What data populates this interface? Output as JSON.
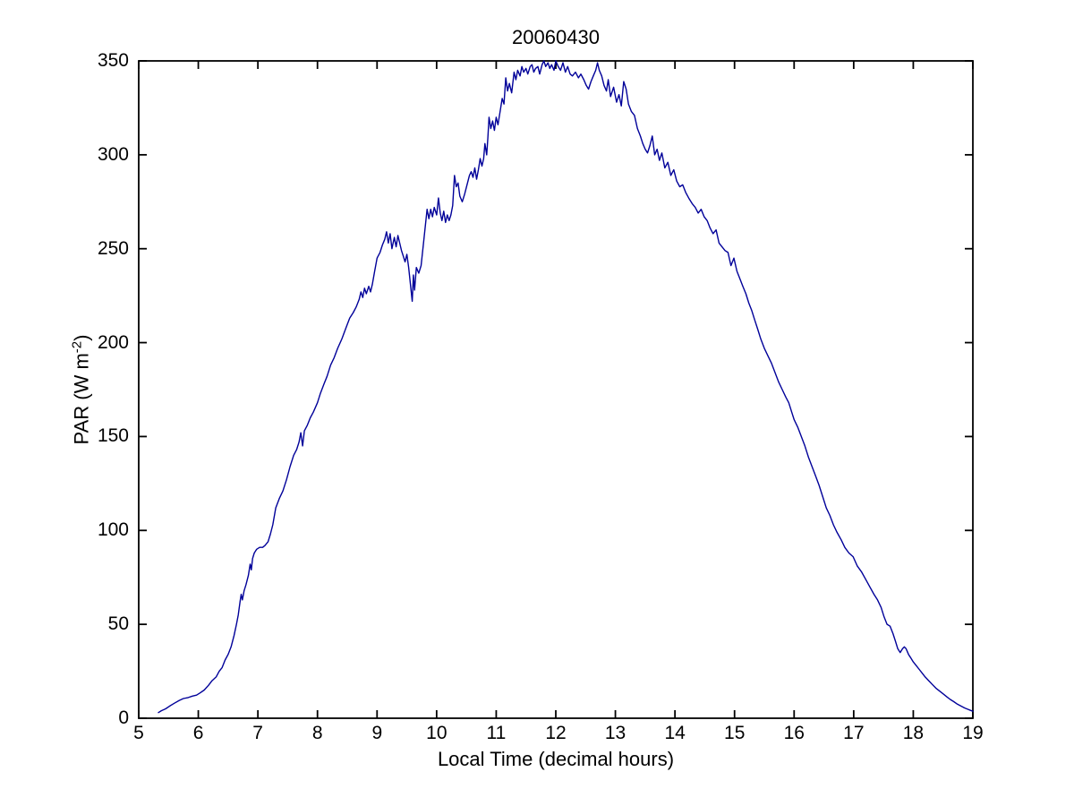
{
  "figure": {
    "background": "#ffffff",
    "text_color": "#000000"
  },
  "chart_data": {
    "type": "line",
    "title": "20060430",
    "xlabel": "Local Time (decimal hours)",
    "ylabel": "PAR (W m-2)",
    "ylabel_main": "PAR (W m",
    "ylabel_sup": "-2",
    "ylabel_end": ")",
    "xlim": [
      5,
      19
    ],
    "ylim": [
      0,
      350
    ],
    "xticks": [
      5,
      6,
      7,
      8,
      9,
      10,
      11,
      12,
      13,
      14,
      15,
      16,
      17,
      18,
      19
    ],
    "yticks": [
      0,
      50,
      100,
      150,
      200,
      250,
      300,
      350
    ],
    "grid": false,
    "legend": null,
    "box": true,
    "tick_direction": "in",
    "line_color": "#000099",
    "axis_color": "#000000",
    "series": [
      {
        "name": "PAR",
        "x": [
          5.33,
          5.38,
          5.45,
          5.52,
          5.6,
          5.68,
          5.75,
          5.83,
          5.9,
          5.97,
          6.03,
          6.1,
          6.17,
          6.23,
          6.3,
          6.35,
          6.4,
          6.45,
          6.5,
          6.55,
          6.6,
          6.64,
          6.67,
          6.7,
          6.72,
          6.74,
          6.77,
          6.8,
          6.84,
          6.87,
          6.89,
          6.91,
          6.94,
          6.98,
          7.03,
          7.08,
          7.12,
          7.17,
          7.21,
          7.25,
          7.3,
          7.36,
          7.42,
          7.48,
          7.54,
          7.6,
          7.65,
          7.69,
          7.72,
          7.75,
          7.78,
          7.83,
          7.88,
          7.93,
          8.0,
          8.05,
          8.11,
          8.16,
          8.22,
          8.28,
          8.34,
          8.41,
          8.48,
          8.54,
          8.6,
          8.65,
          8.7,
          8.73,
          8.76,
          8.79,
          8.82,
          8.86,
          8.89,
          8.92,
          8.96,
          9.0,
          9.05,
          9.09,
          9.13,
          9.16,
          9.19,
          9.22,
          9.25,
          9.29,
          9.32,
          9.35,
          9.38,
          9.41,
          9.44,
          9.47,
          9.5,
          9.53,
          9.56,
          9.59,
          9.61,
          9.63,
          9.66,
          9.7,
          9.74,
          9.78,
          9.81,
          9.84,
          9.87,
          9.9,
          9.93,
          9.96,
          10.0,
          10.03,
          10.06,
          10.09,
          10.12,
          10.15,
          10.18,
          10.21,
          10.24,
          10.27,
          10.3,
          10.33,
          10.36,
          10.39,
          10.43,
          10.47,
          10.51,
          10.55,
          10.58,
          10.61,
          10.64,
          10.67,
          10.7,
          10.73,
          10.76,
          10.79,
          10.81,
          10.84,
          10.86,
          10.88,
          10.91,
          10.94,
          10.97,
          11.0,
          11.03,
          11.07,
          11.1,
          11.13,
          11.16,
          11.19,
          11.22,
          11.26,
          11.3,
          11.33,
          11.36,
          11.4,
          11.43,
          11.46,
          11.5,
          11.53,
          11.57,
          11.6,
          11.63,
          11.66,
          11.7,
          11.73,
          11.77,
          11.8,
          11.83,
          11.87,
          11.9,
          11.93,
          11.97,
          12.0,
          12.04,
          12.08,
          12.12,
          12.16,
          12.2,
          12.24,
          12.28,
          12.33,
          12.38,
          12.42,
          12.47,
          12.51,
          12.55,
          12.59,
          12.63,
          12.67,
          12.7,
          12.73,
          12.77,
          12.81,
          12.85,
          12.88,
          12.92,
          12.97,
          13.02,
          13.06,
          13.1,
          13.14,
          13.18,
          13.22,
          13.27,
          13.32,
          13.37,
          13.42,
          13.46,
          13.5,
          13.54,
          13.58,
          13.62,
          13.66,
          13.7,
          13.74,
          13.78,
          13.83,
          13.88,
          13.93,
          13.98,
          14.03,
          14.08,
          14.13,
          14.18,
          14.23,
          14.29,
          14.34,
          14.39,
          14.44,
          14.49,
          14.54,
          14.59,
          14.64,
          14.69,
          14.74,
          14.79,
          14.84,
          14.89,
          14.94,
          14.99,
          15.04,
          15.09,
          15.14,
          15.19,
          15.24,
          15.29,
          15.34,
          15.39,
          15.44,
          15.5,
          15.56,
          15.62,
          15.68,
          15.74,
          15.8,
          15.86,
          15.91,
          15.96,
          16.0,
          16.06,
          16.12,
          16.18,
          16.24,
          16.3,
          16.36,
          16.42,
          16.48,
          16.54,
          16.6,
          16.66,
          16.72,
          16.79,
          16.85,
          16.92,
          16.99,
          17.06,
          17.13,
          17.2,
          17.27,
          17.34,
          17.4,
          17.46,
          17.51,
          17.56,
          17.61,
          17.66,
          17.7,
          17.74,
          17.78,
          17.82,
          17.85,
          17.88,
          17.92,
          17.96,
          18.0,
          18.05,
          18.1,
          18.15,
          18.2,
          18.26,
          18.32,
          18.38,
          18.44,
          18.5,
          18.56,
          18.62,
          18.68,
          18.74,
          18.8,
          18.86,
          18.92,
          18.96,
          19.0
        ],
        "y": [
          3,
          4,
          5,
          6.5,
          8,
          9.5,
          10.5,
          11,
          11.8,
          12.3,
          13.5,
          15,
          17.5,
          20,
          22,
          25,
          27,
          31,
          34,
          38,
          44,
          50,
          55,
          62,
          66,
          63,
          68,
          71,
          76,
          82,
          79,
          85,
          88,
          90,
          91,
          91,
          92,
          94,
          98,
          103,
          112,
          117,
          121,
          127,
          134,
          140,
          143,
          147,
          152,
          145,
          153,
          156,
          160,
          163,
          168,
          173,
          178,
          182,
          188,
          192,
          197,
          202,
          208,
          213,
          216,
          219,
          223,
          227,
          224,
          229,
          226,
          230,
          227,
          231,
          238,
          245,
          248,
          252,
          255,
          259,
          253,
          258,
          250,
          256,
          251,
          257,
          253,
          249,
          246,
          243,
          247,
          240,
          231,
          222,
          236,
          228,
          240,
          237,
          241,
          253,
          262,
          271,
          266,
          271,
          267,
          272,
          268,
          277,
          269,
          265,
          270,
          264,
          268,
          265,
          268,
          273,
          289,
          283,
          285,
          278,
          275,
          279,
          284,
          289,
          291,
          288,
          293,
          287,
          292,
          298,
          294,
          298,
          306,
          300,
          309,
          320,
          314,
          318,
          313,
          320,
          316,
          324,
          330,
          327,
          341,
          334,
          338,
          333,
          344,
          340,
          345,
          342,
          347,
          344,
          346,
          343,
          347,
          348,
          344,
          346,
          347,
          343,
          348,
          350,
          347,
          349,
          346,
          348,
          345,
          350,
          347,
          345,
          349,
          344,
          347,
          343,
          342,
          344,
          341,
          343,
          340,
          337,
          335,
          339,
          342,
          345,
          349,
          345,
          342,
          337,
          334,
          340,
          331,
          336,
          328,
          332,
          326,
          339,
          335,
          327,
          323,
          321,
          314,
          310,
          306,
          303,
          301,
          305,
          310,
          300,
          303,
          297,
          301,
          293,
          296,
          289,
          292,
          286,
          283,
          284,
          280,
          277,
          274,
          272,
          269,
          271,
          267,
          265,
          261,
          258,
          260,
          253,
          251,
          249,
          248,
          241,
          245,
          238,
          234,
          230,
          226,
          221,
          217,
          212,
          207,
          202,
          197,
          193,
          189,
          184,
          179,
          175,
          171,
          168,
          163,
          159,
          155,
          150,
          145,
          139,
          134,
          129,
          124,
          118,
          112,
          108,
          103,
          99,
          95,
          91,
          88,
          86,
          81,
          78,
          74,
          70,
          66,
          63,
          59,
          54,
          50,
          49,
          45,
          41,
          37,
          35,
          37,
          38,
          37,
          34,
          32,
          30,
          28,
          26,
          24,
          22,
          20,
          18,
          16,
          14.5,
          13,
          11.5,
          10,
          8.8,
          7.5,
          6.5,
          5.5,
          4.7,
          4.2,
          3.7
        ]
      }
    ]
  }
}
